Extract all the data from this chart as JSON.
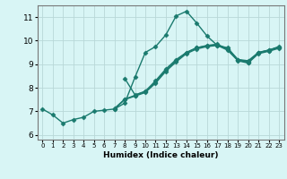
{
  "title": "",
  "xlabel": "Humidex (Indice chaleur)",
  "ylabel": "",
  "bg_color": "#d8f5f5",
  "grid_color": "#b8d8d8",
  "line_color": "#1a7a6e",
  "marker": "D",
  "markersize": 2.5,
  "linewidth": 1.0,
  "xlim": [
    -0.5,
    23.5
  ],
  "ylim": [
    5.8,
    11.5
  ],
  "xticks": [
    0,
    1,
    2,
    3,
    4,
    5,
    6,
    7,
    8,
    9,
    10,
    11,
    12,
    13,
    14,
    15,
    16,
    17,
    18,
    19,
    20,
    21,
    22,
    23
  ],
  "yticks": [
    6,
    7,
    8,
    9,
    10,
    11
  ],
  "lines": [
    {
      "x": [
        0,
        1,
        2,
        3,
        4,
        5,
        6,
        7,
        8,
        9,
        10,
        11,
        12,
        13,
        14,
        15,
        16,
        17,
        18,
        19,
        20,
        21,
        22,
        23
      ],
      "y": [
        7.1,
        6.85,
        6.5,
        6.65,
        6.75,
        7.0,
        7.05,
        7.1,
        7.35,
        8.45,
        9.5,
        9.75,
        10.25,
        11.05,
        11.25,
        10.75,
        10.2,
        9.8,
        9.7,
        9.2,
        9.15,
        9.5,
        9.6,
        9.75
      ]
    },
    {
      "x": [
        8,
        9,
        10,
        11,
        12,
        13,
        14,
        15,
        16,
        17,
        18,
        19,
        20,
        21,
        22,
        23
      ],
      "y": [
        8.4,
        7.7,
        7.85,
        8.3,
        8.8,
        9.2,
        9.5,
        9.7,
        9.8,
        9.85,
        9.65,
        9.2,
        9.1,
        9.5,
        9.6,
        9.73
      ]
    },
    {
      "x": [
        7,
        8,
        9,
        10,
        11,
        12,
        13,
        14,
        15,
        16,
        17,
        18,
        19,
        20,
        21,
        22,
        23
      ],
      "y": [
        7.1,
        7.5,
        7.65,
        7.8,
        8.2,
        8.7,
        9.1,
        9.45,
        9.65,
        9.75,
        9.8,
        9.6,
        9.15,
        9.05,
        9.45,
        9.55,
        9.68
      ]
    },
    {
      "x": [
        7,
        8,
        9,
        10,
        11,
        12,
        13,
        14,
        15,
        16,
        17,
        18,
        19,
        20,
        21,
        22,
        23
      ],
      "y": [
        7.12,
        7.52,
        7.68,
        7.85,
        8.25,
        8.75,
        9.15,
        9.5,
        9.7,
        9.78,
        9.83,
        9.63,
        9.18,
        9.08,
        9.48,
        9.58,
        9.72
      ]
    }
  ]
}
